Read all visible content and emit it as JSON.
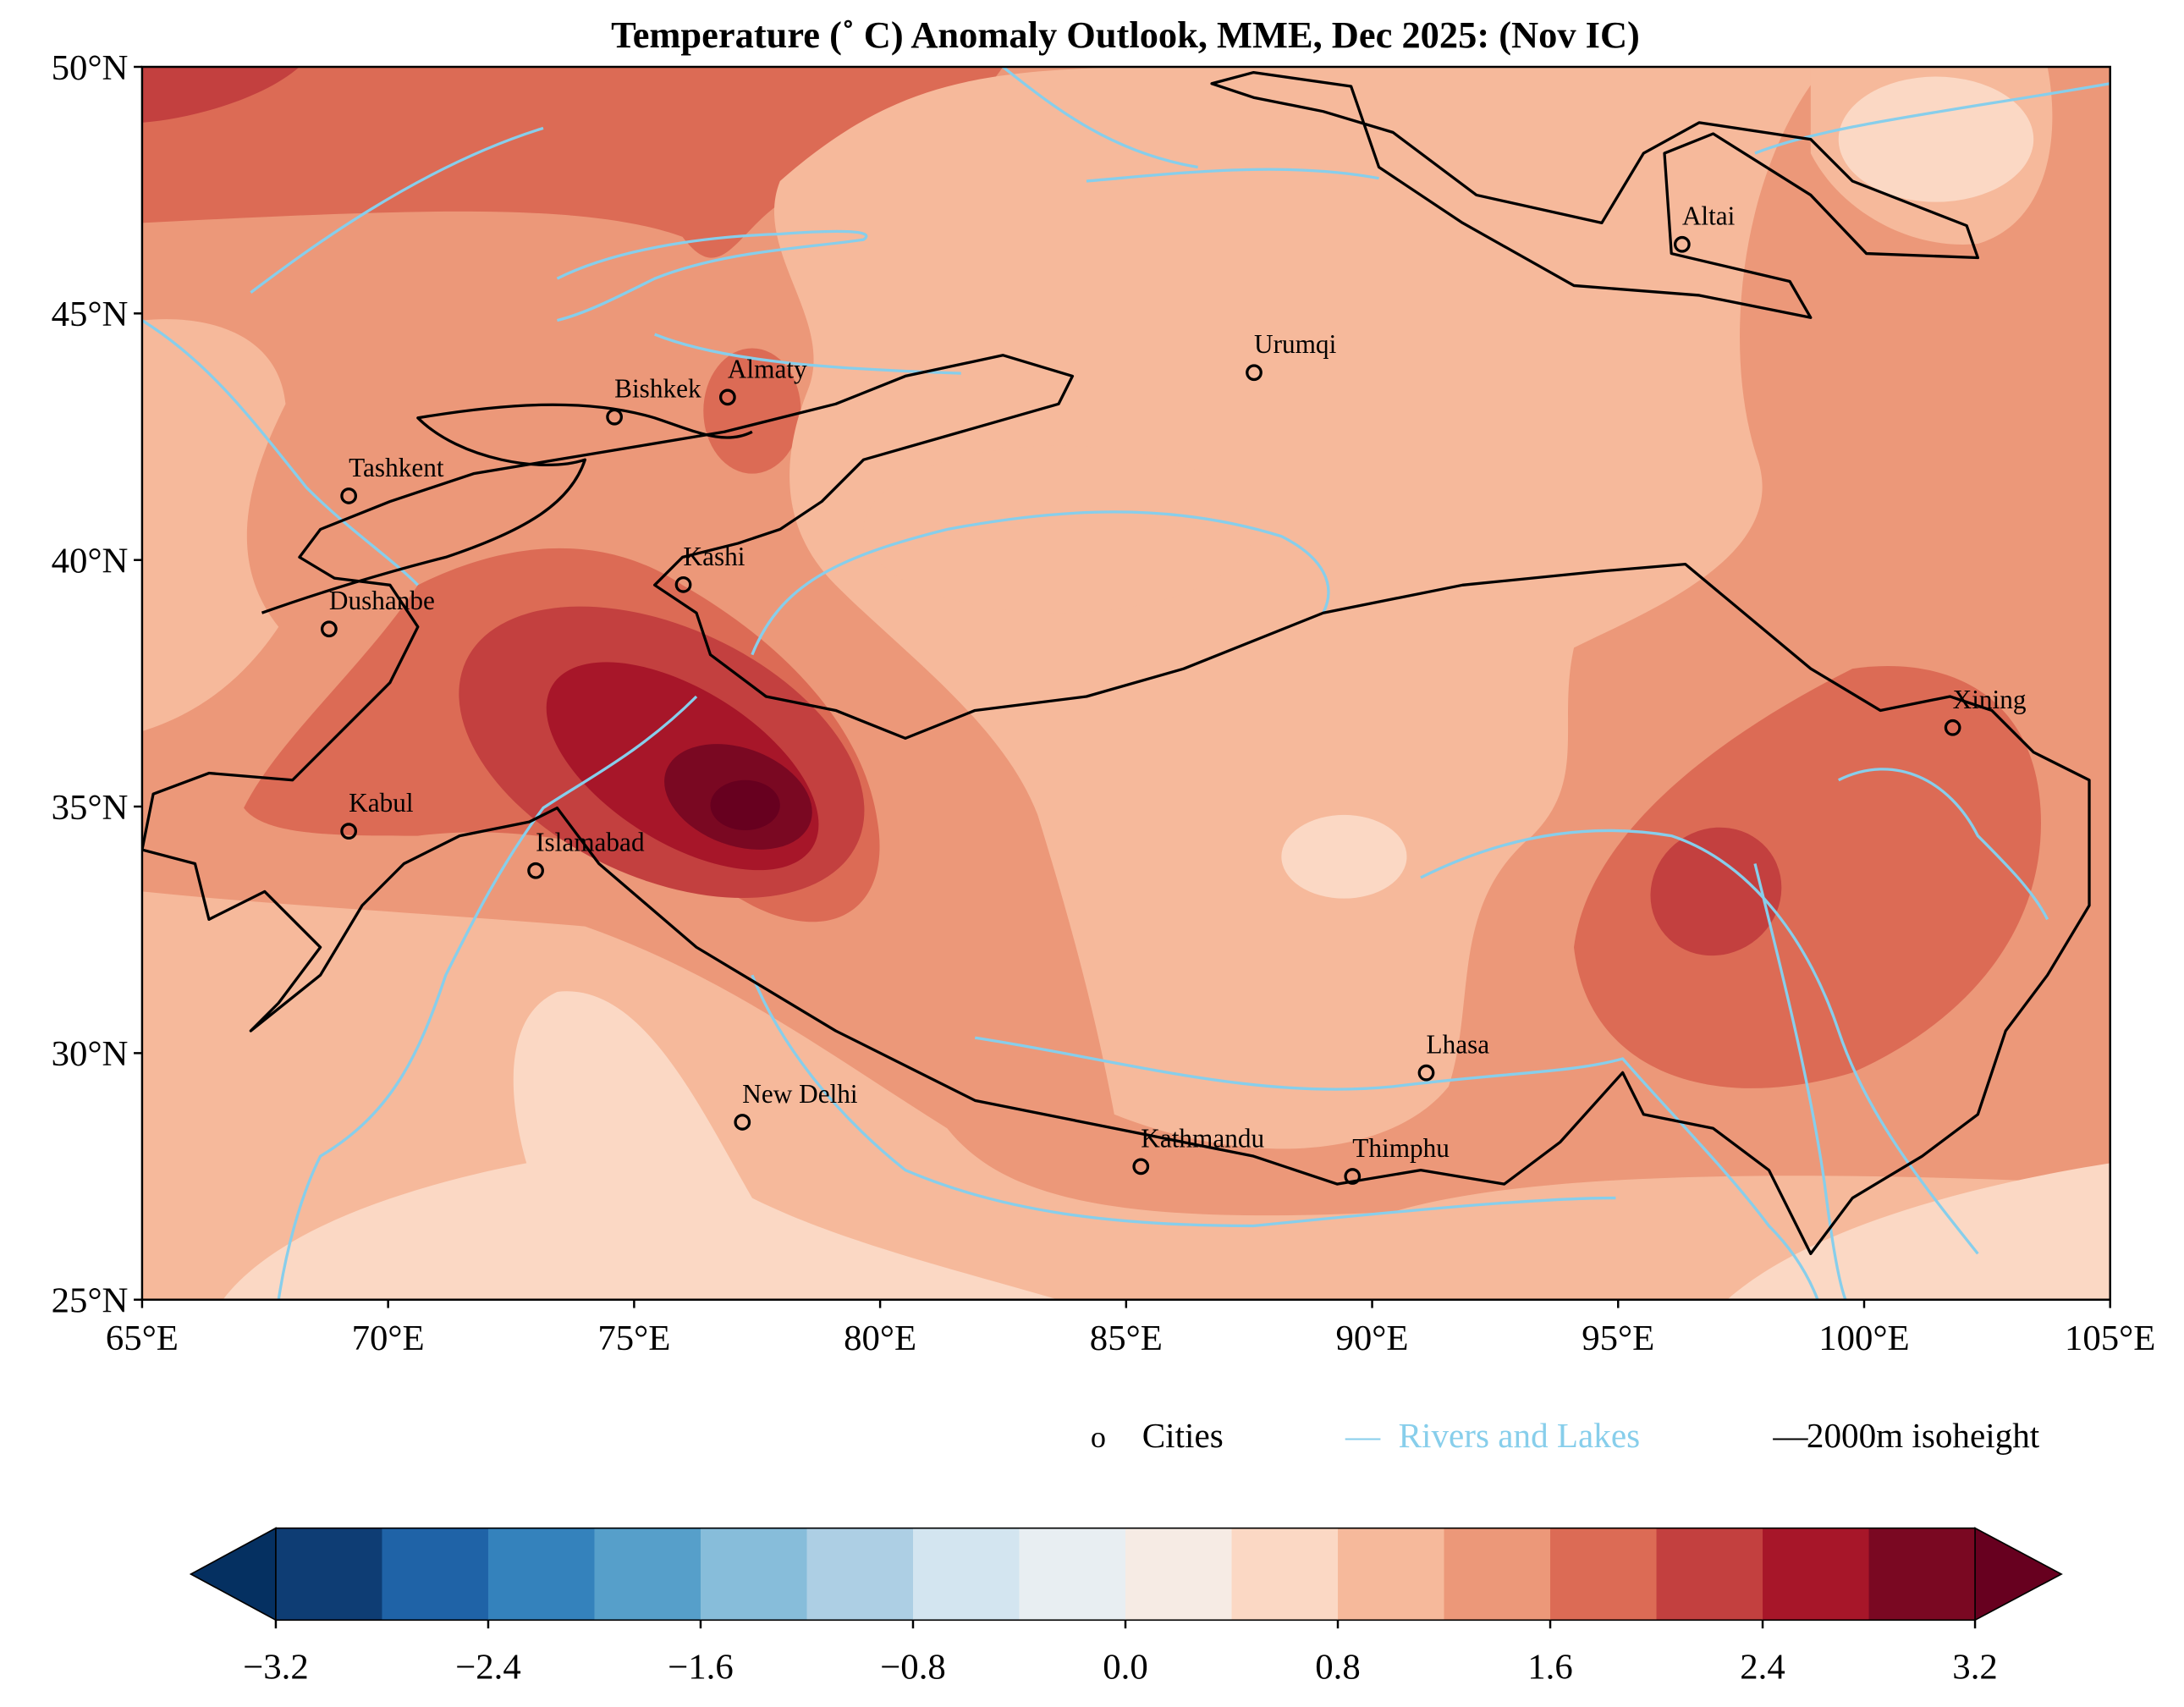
{
  "title": "Temperature (˚ C) Anomaly Outlook, MME, Dec  2025:  (Nov IC)",
  "chart_data": {
    "type": "filled-contour map",
    "variable": "Temperature anomaly (°C)",
    "lon_range": [
      65,
      105
    ],
    "lat_range": [
      25,
      50
    ],
    "lon_ticks": [
      "65°E",
      "70°E",
      "75°E",
      "80°E",
      "85°E",
      "90°E",
      "95°E",
      "100°E",
      "105°E"
    ],
    "lat_ticks": [
      "25°N",
      "30°N",
      "35°N",
      "40°N",
      "45°N",
      "50°N"
    ],
    "colorbar": {
      "levels": [
        -3.2,
        -2.8,
        -2.4,
        -2.0,
        -1.6,
        -1.2,
        -0.8,
        -0.4,
        0.0,
        0.4,
        0.8,
        1.2,
        1.6,
        2.0,
        2.4,
        2.8,
        3.2
      ],
      "tick_labels": [
        "−3.2",
        "−2.4",
        "−1.6",
        "−0.8",
        "0.0",
        "0.8",
        "1.6",
        "2.4",
        "3.2"
      ],
      "colors": [
        "#0e3d74",
        "#1f63a7",
        "#3482bc",
        "#569fca",
        "#87bdda",
        "#adcfe4",
        "#d3e5f0",
        "#e8eef2",
        "#f6ebe4",
        "#fbd8c4",
        "#f6b99b",
        "#ec9879",
        "#dc6b55",
        "#c3403f",
        "#a71629",
        "#7a0822"
      ],
      "under_color": "#053061",
      "over_color": "#67001f"
    },
    "max_anomaly_region": "western Kunlun / Karakoram near 77°E 35°N (>3.2)",
    "cities": [
      {
        "name": "Altai",
        "lon": 96.3,
        "lat": 46.4
      },
      {
        "name": "Urumqi",
        "lon": 87.6,
        "lat": 43.8
      },
      {
        "name": "Almaty",
        "lon": 76.9,
        "lat": 43.3
      },
      {
        "name": "Bishkek",
        "lon": 74.6,
        "lat": 42.9
      },
      {
        "name": "Tashkent",
        "lon": 69.2,
        "lat": 41.3
      },
      {
        "name": "Kashi",
        "lon": 76.0,
        "lat": 39.5
      },
      {
        "name": "Dushanbe",
        "lon": 68.8,
        "lat": 38.6
      },
      {
        "name": "Xining",
        "lon": 101.8,
        "lat": 36.6
      },
      {
        "name": "Kabul",
        "lon": 69.2,
        "lat": 34.5
      },
      {
        "name": "Islamabad",
        "lon": 73.0,
        "lat": 33.7
      },
      {
        "name": "Lhasa",
        "lon": 91.1,
        "lat": 29.6
      },
      {
        "name": "New Delhi",
        "lon": 77.2,
        "lat": 28.6
      },
      {
        "name": "Kathmandu",
        "lon": 85.3,
        "lat": 27.7
      },
      {
        "name": "Thimphu",
        "lon": 89.6,
        "lat": 27.5
      }
    ]
  },
  "legend": {
    "cities_marker": "o",
    "cities": "Cities",
    "rivers_marker": "—",
    "rivers": "Rivers and Lakes",
    "iso_marker": "—",
    "iso": "2000m isoheight",
    "river_color": "#87ceeb"
  }
}
